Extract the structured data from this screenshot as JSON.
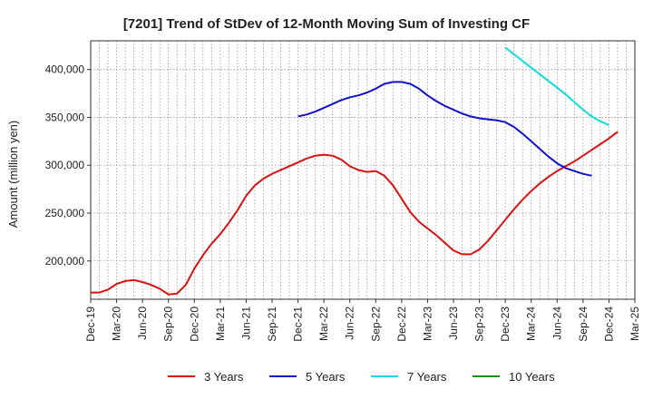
{
  "chart_data": {
    "type": "line",
    "title": "[7201]  Trend of StDev of 12-Month Moving Sum of Investing CF",
    "ylabel": "Amount (million yen)",
    "xlabel": "",
    "ylim": [
      160000,
      430000
    ],
    "yticks": [
      200000,
      250000,
      300000,
      350000,
      400000
    ],
    "ytick_labels": [
      "200,000",
      "250,000",
      "300,000",
      "350,000",
      "400,000"
    ],
    "xticks": [
      "Dec-19",
      "Mar-20",
      "Jun-20",
      "Sep-20",
      "Dec-20",
      "Mar-21",
      "Jun-21",
      "Sep-21",
      "Dec-21",
      "Mar-22",
      "Jun-22",
      "Sep-22",
      "Dec-22",
      "Mar-23",
      "Jun-23",
      "Sep-23",
      "Dec-23",
      "Mar-24",
      "Jun-24",
      "Sep-24",
      "Dec-24",
      "Mar-25"
    ],
    "grid": true,
    "legend_position": "bottom",
    "series": [
      {
        "name": "3 Years",
        "color": "#dd1111",
        "start_month": "Dec-19",
        "values": [
          167000,
          167000,
          170000,
          176000,
          179000,
          180000,
          178000,
          175000,
          171000,
          165000,
          166000,
          175000,
          192000,
          206000,
          218000,
          228000,
          240000,
          253000,
          268000,
          279000,
          286000,
          291000,
          295000,
          299000,
          303000,
          307000,
          310000,
          311000,
          310000,
          306000,
          299000,
          295000,
          293000,
          294000,
          289000,
          279000,
          265000,
          251000,
          241000,
          234000,
          227000,
          219000,
          211000,
          207000,
          207000,
          212000,
          221000,
          232000,
          243000,
          254000,
          264000,
          273000,
          281000,
          288000,
          294000,
          299000,
          304000,
          310000,
          316000,
          322000,
          328000,
          335000
        ]
      },
      {
        "name": "5 Years",
        "color": "#1111cc",
        "start_month": "Dec-21",
        "values": [
          351000,
          353000,
          356000,
          360000,
          364000,
          368000,
          371000,
          373000,
          376000,
          380000,
          385000,
          387000,
          387000,
          385000,
          380000,
          373000,
          367000,
          362000,
          358000,
          354000,
          351000,
          349000,
          348000,
          347000,
          345000,
          340000,
          333000,
          325000,
          317000,
          309000,
          302000,
          297000,
          294000,
          291000,
          289000
        ]
      },
      {
        "name": "7 Years",
        "color": "#11dddd",
        "start_month": "Dec-23",
        "values": [
          423000,
          416000,
          409000,
          402000,
          395000,
          388000,
          381000,
          374000,
          366000,
          358000,
          351000,
          346000,
          342000
        ]
      },
      {
        "name": "10 Years",
        "color": "#228822",
        "start_month": "Dec-24",
        "values": []
      }
    ]
  }
}
